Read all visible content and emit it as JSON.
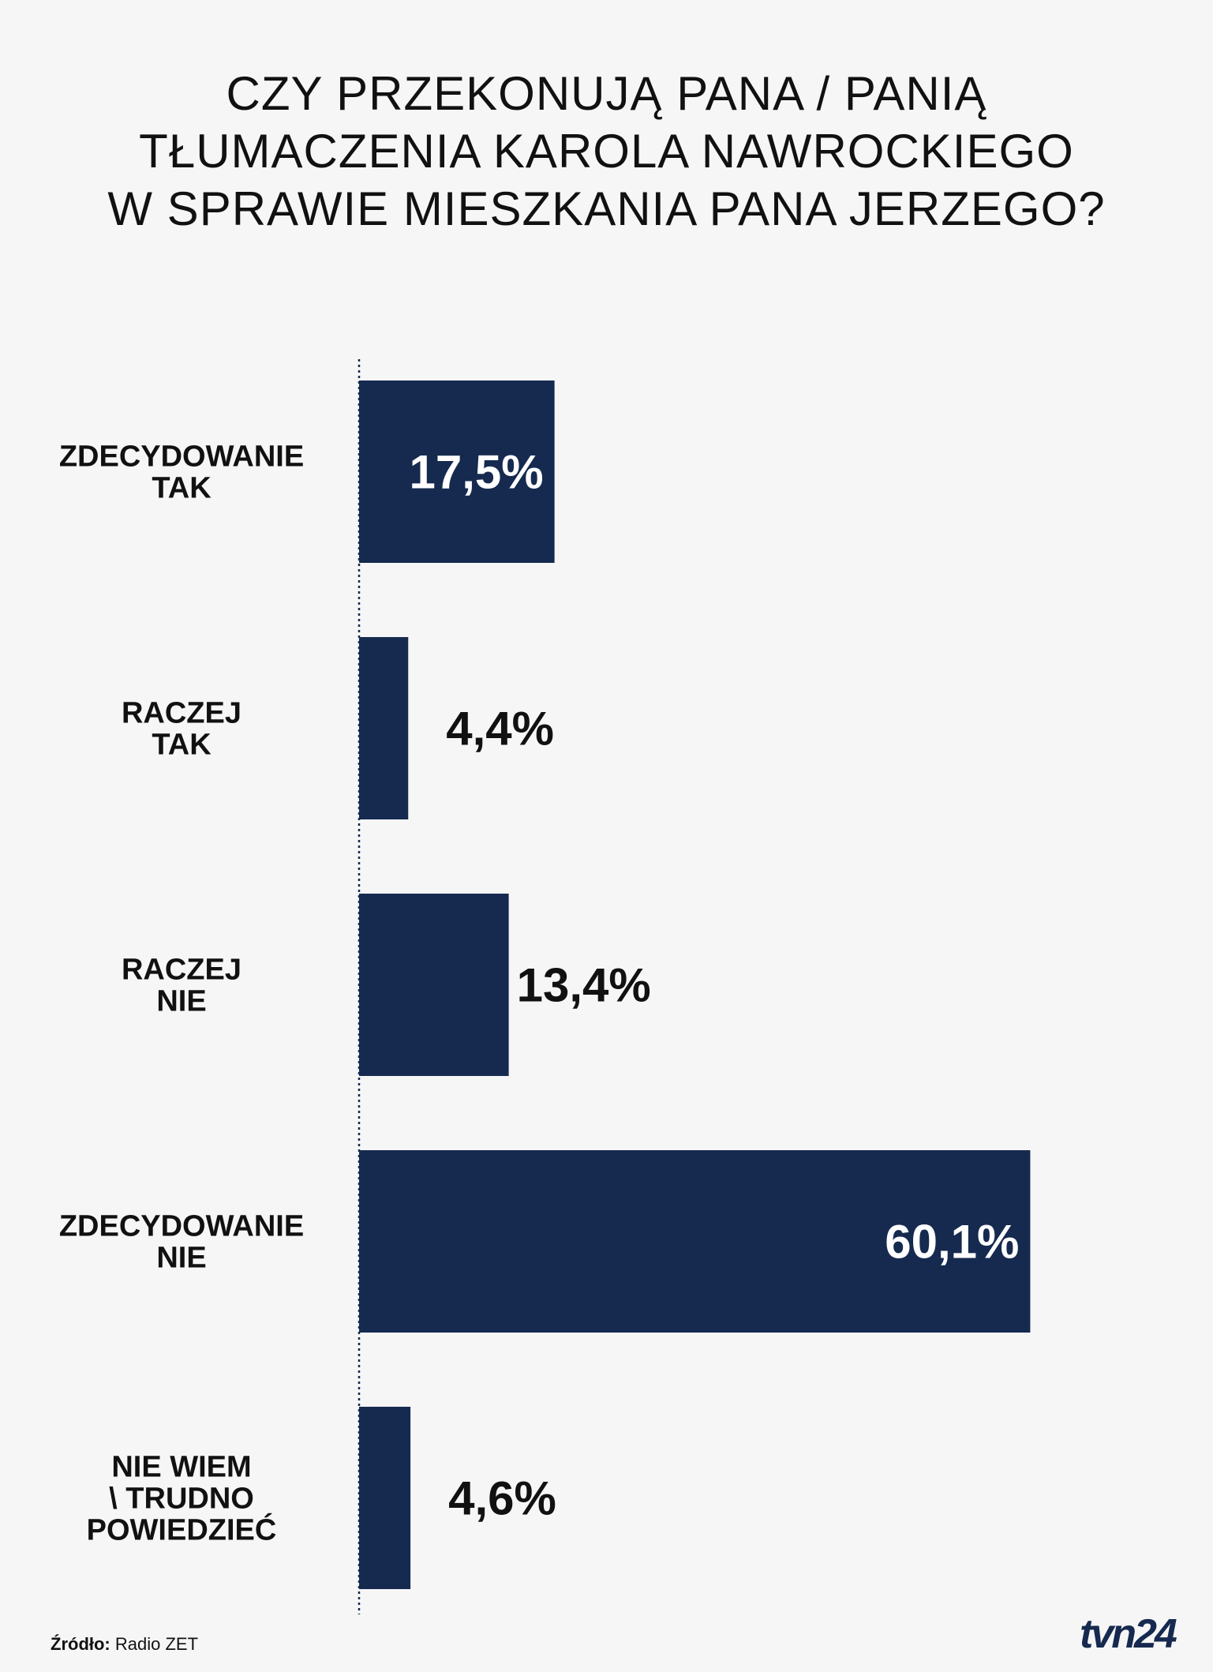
{
  "chart_data": {
    "type": "bar",
    "orientation": "horizontal",
    "title_lines": [
      "CZY PRZEKONUJĄ PANA / PANIĄ",
      "TŁUMACZENIA KAROLA NAWROCKIEGO",
      "W SPRAWIE MIESZKANIA PANA JERZEGO?"
    ],
    "categories": [
      [
        "ZDECYDOWANIE",
        "TAK"
      ],
      [
        "RACZEJ",
        "TAK"
      ],
      [
        "RACZEJ",
        "NIE"
      ],
      [
        "ZDECYDOWANIE",
        "NIE"
      ],
      [
        "NIE WIEM",
        "\\ TRUDNO",
        "POWIEDZIEĆ"
      ]
    ],
    "values": [
      17.5,
      4.4,
      13.4,
      60.1,
      4.6
    ],
    "value_labels": [
      "17,5%",
      "4,4%",
      "13,4%",
      "60,1%",
      "4,6%"
    ],
    "value_label_inside": [
      true,
      false,
      false,
      true,
      false
    ],
    "bar_color": "#162a50",
    "inside_label_color": "#ffffff",
    "outside_label_color": "#111111",
    "baseline_style": "dotted",
    "grid": false,
    "legend": false
  },
  "footer": {
    "source_label": "Źródło:",
    "source_value": "Radio ZET",
    "logo_text": "tvn24"
  }
}
